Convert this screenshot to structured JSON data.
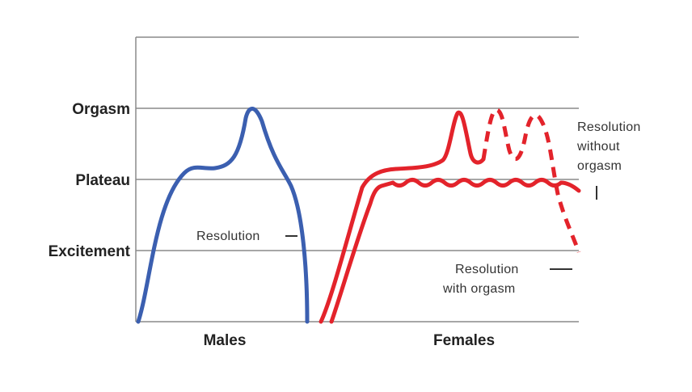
{
  "levels": {
    "orgasm": "Orgasm",
    "plateau": "Plateau",
    "excitement": "Excitement"
  },
  "groups": {
    "males": "Males",
    "females": "Females"
  },
  "annotations": {
    "male_resolution": "Resolution",
    "resolution_without_orgasm": [
      "Resolution",
      "without",
      "orgasm"
    ],
    "resolution_with_orgasm": [
      "Resolution",
      "with orgasm"
    ]
  },
  "colors": {
    "male_curve": "#3b5fb0",
    "female_curve": "#e3232b",
    "grid": "#8a8a8a"
  }
}
